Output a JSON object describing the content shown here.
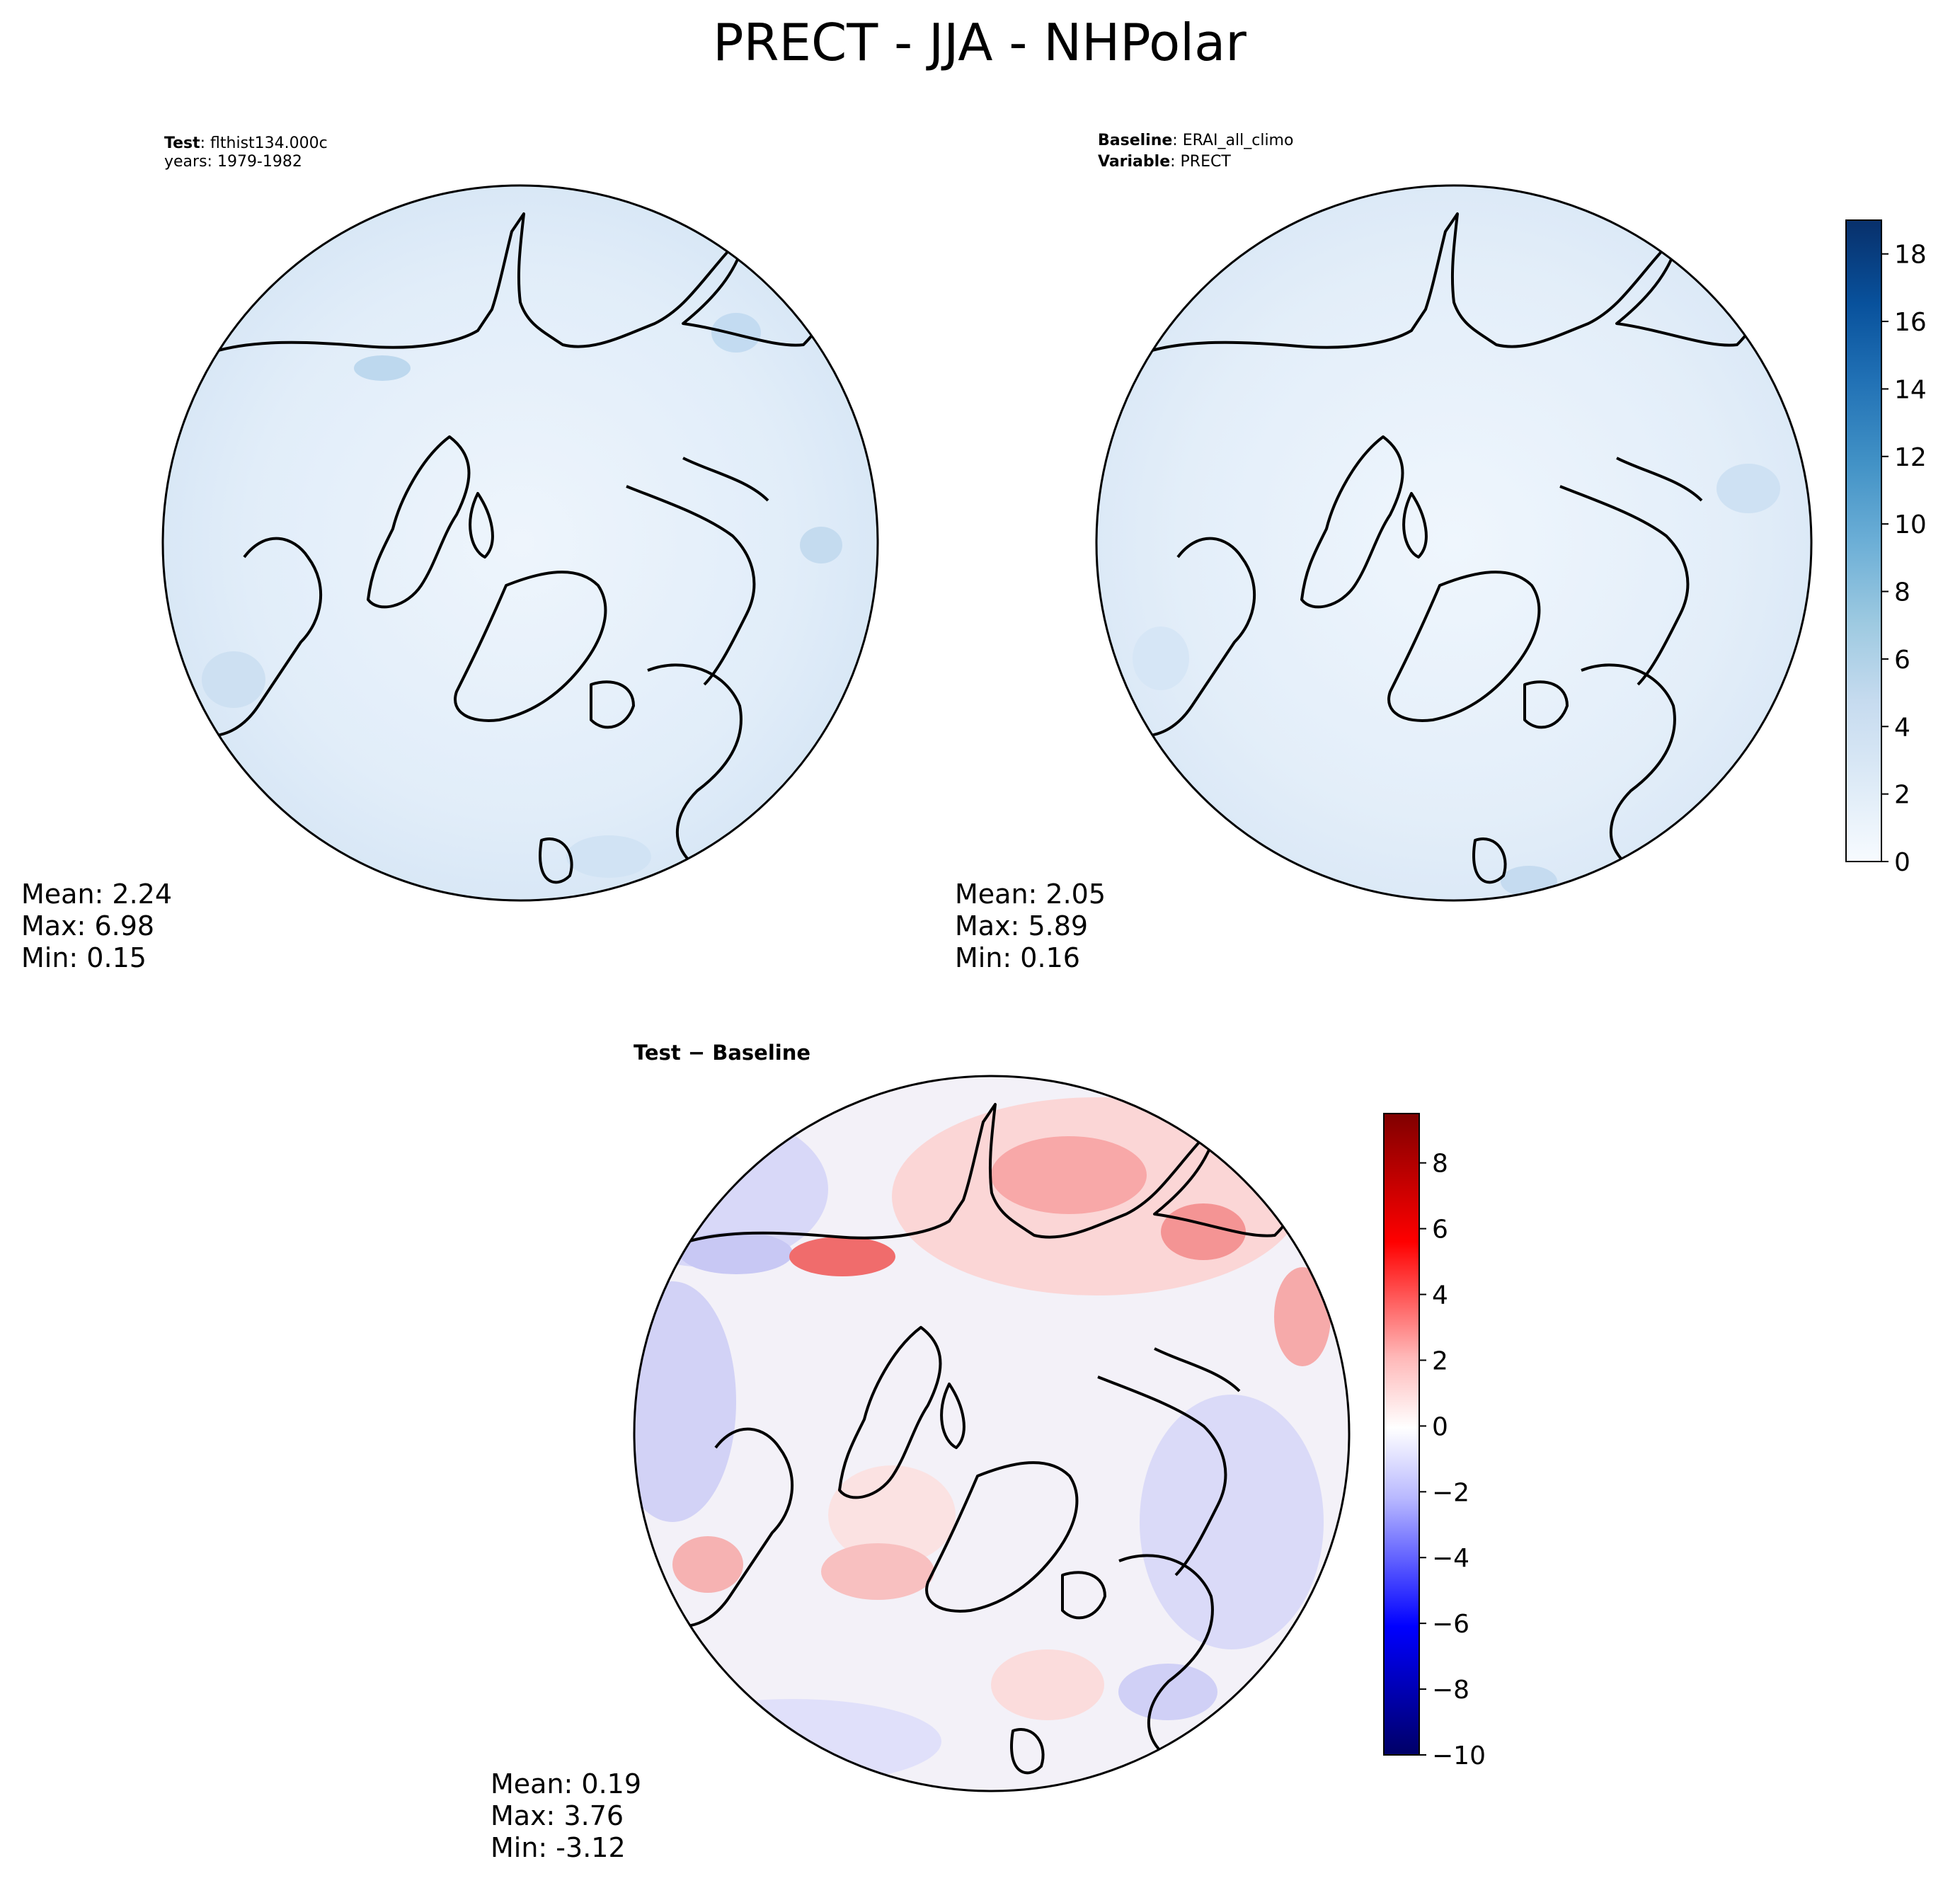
{
  "figure": {
    "title": "PRECT - JJA - NHPolar"
  },
  "panels": {
    "test": {
      "label_key": "Test",
      "label_value": ": flthist134.000c",
      "years_line": "years: 1979-1982",
      "stats": {
        "mean": "Mean:  2.24",
        "max": "Max:  6.98",
        "min": "Min:  0.15"
      }
    },
    "baseline": {
      "label_key": "Baseline",
      "label_value": ": ERAI_all_climo",
      "variable_key": "Variable",
      "variable_value": ": PRECT",
      "stats": {
        "mean": "Mean:  2.05",
        "max": "Max:  5.89",
        "min": "Min:  0.16"
      }
    },
    "difference": {
      "title": "Test − Baseline",
      "stats": {
        "mean": "Mean:  0.19",
        "max": "Max:  3.76",
        "min": "Min: -3.12"
      }
    }
  },
  "colors": {
    "field_background": "#e2eef9",
    "blues_cmap": [
      "#f7fbff",
      "#deebf7",
      "#c6dbef",
      "#9ecae1",
      "#6baed6",
      "#4292c6",
      "#2171b5",
      "#08519c",
      "#08306b"
    ],
    "bwr_cmap": [
      "#000066",
      "#0000ff",
      "#8080ff",
      "#e8e8ff",
      "#ffe8e8",
      "#ff8080",
      "#ff0000",
      "#800000"
    ]
  },
  "chart_data": [
    {
      "type": "heatmap",
      "name": "test",
      "projection": "north-polar-stereographic",
      "colorbar": "shared-with-baseline",
      "mean": 2.24,
      "max": 6.98,
      "min": 0.15
    },
    {
      "type": "heatmap",
      "name": "baseline",
      "projection": "north-polar-stereographic",
      "colorbar": {
        "cmap": "Blues",
        "range": [
          0,
          19
        ],
        "levels": 19,
        "ticks": [
          0,
          2,
          4,
          6,
          8,
          10,
          12,
          14,
          16,
          18
        ],
        "tick_labels": [
          "0",
          "2",
          "4",
          "6",
          "8",
          "10",
          "12",
          "14",
          "16",
          "18"
        ]
      },
      "mean": 2.05,
      "max": 5.89,
      "min": 0.16
    },
    {
      "type": "heatmap",
      "name": "difference",
      "projection": "north-polar-stereographic",
      "colorbar": {
        "cmap": "bwr",
        "range": [
          -10,
          9.5
        ],
        "levels": 39,
        "ticks": [
          -10,
          -8,
          -6,
          -4,
          -2,
          0,
          2,
          4,
          6,
          8
        ],
        "tick_labels": [
          "−10",
          "−8",
          "−6",
          "−4",
          "−2",
          "0",
          "2",
          "4",
          "6",
          "8"
        ]
      },
      "mean": 0.19,
      "max": 3.76,
      "min": -3.12
    }
  ]
}
